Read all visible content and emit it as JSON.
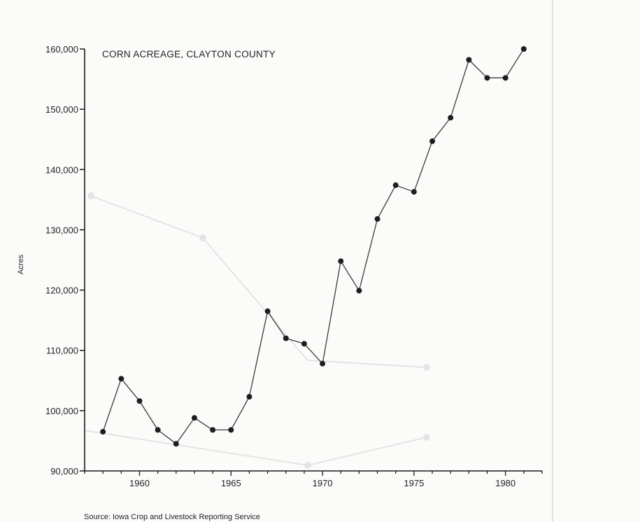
{
  "chart_data": {
    "type": "line",
    "title": "CORN ACREAGE, CLAYTON COUNTY",
    "xlabel": "",
    "ylabel": "Acres",
    "source": "Source:  Iowa Crop and Livestock Reporting Service",
    "xlim": [
      1957,
      1982
    ],
    "ylim": [
      90000,
      160000
    ],
    "x_ticks": [
      1960,
      1965,
      1970,
      1975,
      1980
    ],
    "x_tick_labels": [
      "1960",
      "1965",
      "1970",
      "1975",
      "1980"
    ],
    "y_ticks": [
      90000,
      100000,
      110000,
      120000,
      130000,
      140000,
      150000,
      160000
    ],
    "y_tick_labels": [
      "90,000",
      "100,000",
      "110,000",
      "120,000",
      "130,000",
      "140,000",
      "150,000",
      "160,000"
    ],
    "grid": false,
    "legend": "none",
    "series": [
      {
        "x": [
          1958,
          1959,
          1960,
          1961,
          1962,
          1963,
          1964,
          1965,
          1966,
          1967,
          1968,
          1969,
          1970,
          1971,
          1972,
          1973,
          1974,
          1975,
          1976,
          1977,
          1978,
          1979,
          1980,
          1981
        ],
        "values": [
          96500,
          105300,
          101600,
          96800,
          94500,
          98800,
          96800,
          96800,
          102300,
          116500,
          112000,
          111100,
          107800,
          124800,
          119900,
          131800,
          137400,
          136300,
          144700,
          148600,
          158200,
          155200,
          155200,
          160000
        ]
      }
    ],
    "colors": {
      "line": "#3a3a3a",
      "marker": "#1e1e1e",
      "axis": "#1a1a1a"
    }
  }
}
